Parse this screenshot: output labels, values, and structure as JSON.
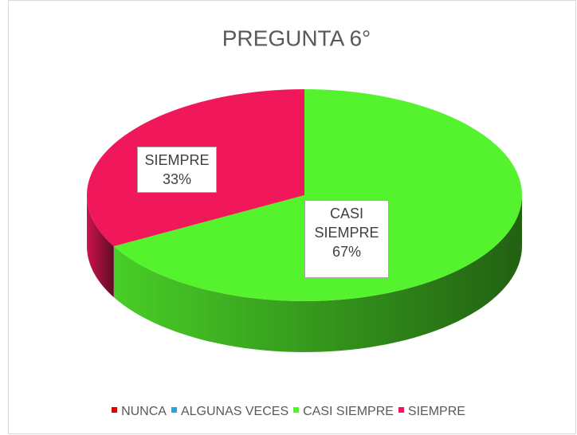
{
  "chart_data": {
    "type": "pie3d",
    "title": "PREGUNTA 6°",
    "categories": [
      "NUNCA",
      "ALGUNAS VECES",
      "CASI SIEMPRE",
      "SIEMPRE"
    ],
    "values": [
      0,
      0,
      67,
      33
    ],
    "value_labels": [
      null,
      null,
      "67%",
      "33%"
    ],
    "colors": [
      "#e00000",
      "#1ea7e0",
      "#55f22e",
      "#f0185a"
    ],
    "legend": "bottom"
  }
}
